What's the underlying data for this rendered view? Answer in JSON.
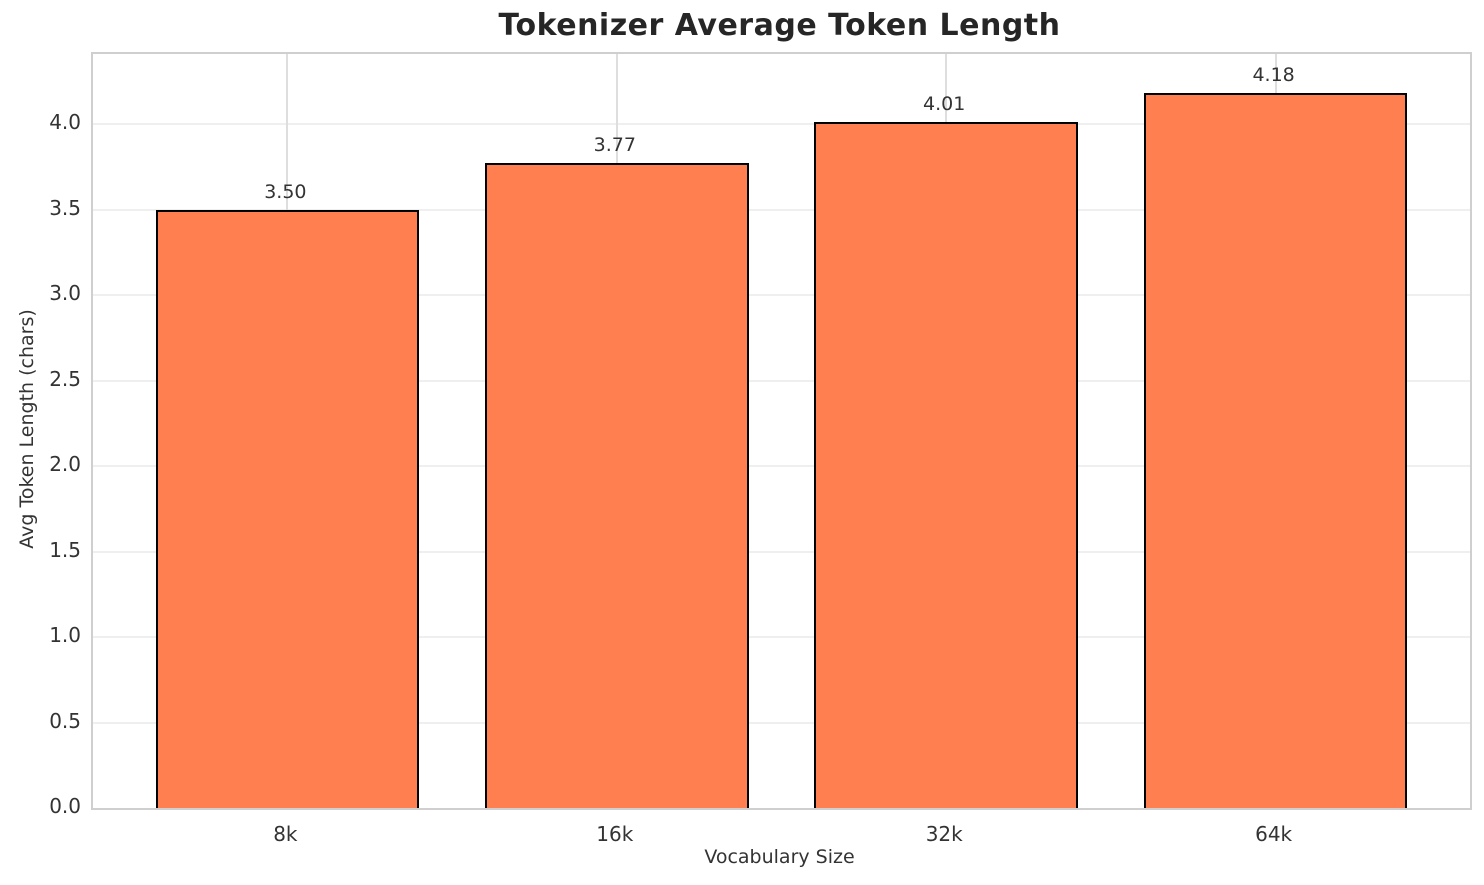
{
  "chart_data": {
    "type": "bar",
    "title": "Tokenizer Average Token Length",
    "xlabel": "Vocabulary Size",
    "ylabel": "Avg Token Length (chars)",
    "categories": [
      "8k",
      "16k",
      "32k",
      "64k"
    ],
    "values": [
      3.5,
      3.77,
      4.01,
      4.18
    ],
    "bar_labels": [
      "3.50",
      "3.77",
      "4.01",
      "4.18"
    ],
    "ytick_labels": [
      "0.0",
      "0.5",
      "1.0",
      "1.5",
      "2.0",
      "2.5",
      "3.0",
      "3.5",
      "4.0"
    ],
    "yticks": [
      0,
      0.5,
      1,
      1.5,
      2,
      2.5,
      3,
      3.5,
      4
    ],
    "ylim": [
      0,
      4.41
    ],
    "grid": true,
    "legend_position": "none",
    "bar_color": "#FF7F50",
    "bar_edge_color": "#000000",
    "grid_color_h": "#efefef",
    "grid_color_v": "#dedede",
    "spine_color": "#cfcfcf",
    "title_color": "#262626",
    "tick_color": "#333333"
  }
}
